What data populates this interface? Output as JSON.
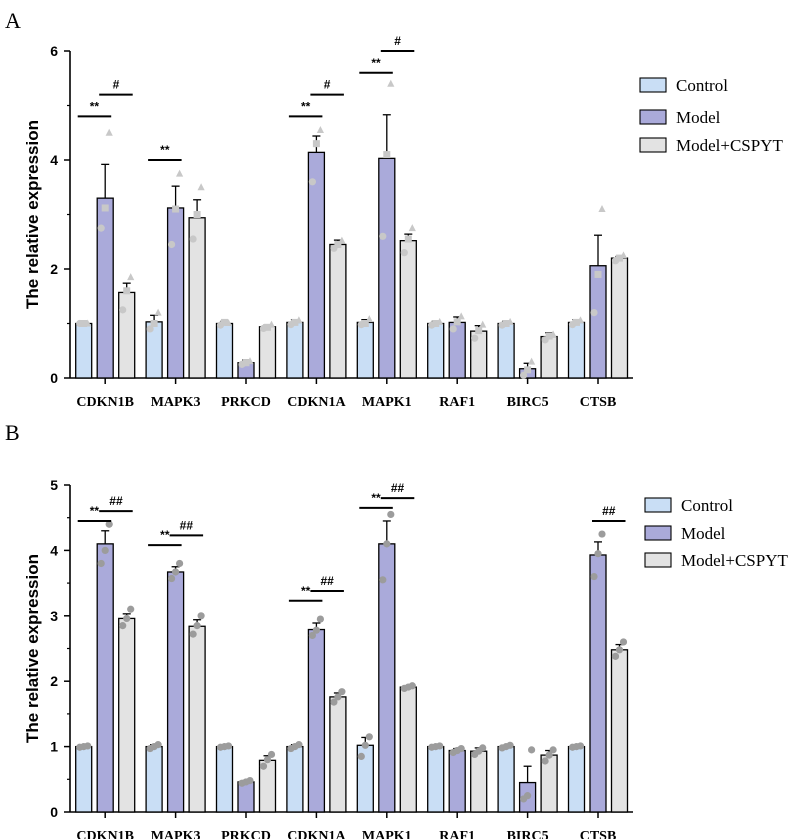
{
  "chart_data": [
    {
      "panel": "A",
      "type": "bar",
      "ylabel": "The relative expression",
      "ylim": [
        0,
        6
      ],
      "yticks": [
        "0",
        "2",
        "4",
        "6"
      ],
      "categories": [
        "CDKN1B",
        "MAPK3",
        "PRKCD",
        "CDKN1A",
        "MAPK1",
        "RAF1",
        "BIRC5",
        "CTSB"
      ],
      "series": [
        {
          "name": "Control",
          "color": "#c9def5",
          "values": [
            1.0,
            1.03,
            1.0,
            1.02,
            1.02,
            1.0,
            1.0,
            1.02
          ],
          "errors": [
            0.02,
            0.12,
            0.04,
            0.05,
            0.05,
            0.04,
            0.04,
            0.05
          ],
          "points": [
            [
              1.0,
              1.0,
              1.0
            ],
            [
              0.9,
              1.0,
              1.2
            ],
            [
              0.97,
              1.02,
              1.01
            ],
            [
              0.98,
              1.02,
              1.06
            ],
            [
              0.98,
              1.0,
              1.08
            ],
            [
              0.97,
              1.0,
              1.03
            ],
            [
              0.97,
              1.0,
              1.03
            ],
            [
              0.98,
              1.02,
              1.06
            ]
          ]
        },
        {
          "name": "Model",
          "color": "#aaaada",
          "values": [
            3.3,
            3.12,
            0.28,
            4.14,
            4.03,
            1.02,
            0.17,
            2.06
          ],
          "errors": [
            0.62,
            0.4,
            0.05,
            0.3,
            0.8,
            0.1,
            0.1,
            0.56
          ],
          "points": [
            [
              2.75,
              3.12,
              4.5
            ],
            [
              2.45,
              3.1,
              3.75
            ],
            [
              0.25,
              0.28,
              0.31
            ],
            [
              3.6,
              4.3,
              4.55
            ],
            [
              2.6,
              4.1,
              5.4
            ],
            [
              0.9,
              1.03,
              1.13
            ],
            [
              0.05,
              0.15,
              0.3
            ],
            [
              1.2,
              1.9,
              3.1
            ]
          ]
        },
        {
          "name": "Model+CSPYT",
          "color": "#e3e3e3",
          "values": [
            1.57,
            2.94,
            0.94,
            2.45,
            2.52,
            0.86,
            0.76,
            2.2
          ],
          "errors": [
            0.17,
            0.33,
            0.03,
            0.08,
            0.12,
            0.1,
            0.07,
            0.03
          ],
          "points": [
            [
              1.25,
              1.6,
              1.85
            ],
            [
              2.55,
              3.0,
              3.5
            ],
            [
              0.91,
              0.93,
              0.98
            ],
            [
              2.38,
              2.45,
              2.52
            ],
            [
              2.3,
              2.55,
              2.75
            ],
            [
              0.73,
              0.87,
              0.98
            ],
            [
              0.7,
              0.77,
              0.8
            ],
            [
              2.15,
              2.2,
              2.25
            ]
          ]
        }
      ],
      "annotations": [
        {
          "category": "CDKN1B",
          "text": "**",
          "from": 0,
          "to": 1,
          "level": 4.8
        },
        {
          "category": "CDKN1B",
          "text": "#",
          "from": 1,
          "to": 2,
          "level": 5.2
        },
        {
          "category": "MAPK3",
          "text": "**",
          "from": 0,
          "to": 1,
          "level": 4.0
        },
        {
          "category": "CDKN1A",
          "text": "**",
          "from": 0,
          "to": 1,
          "level": 4.8
        },
        {
          "category": "CDKN1A",
          "text": "#",
          "from": 1,
          "to": 2,
          "level": 5.2
        },
        {
          "category": "MAPK1",
          "text": "**",
          "from": 0,
          "to": 1,
          "level": 5.6
        },
        {
          "category": "MAPK1",
          "text": "#",
          "from": 1,
          "to": 2,
          "level": 6.0
        }
      ]
    },
    {
      "panel": "B",
      "type": "bar",
      "ylabel": "The relative expression",
      "ylim": [
        0,
        5
      ],
      "yticks": [
        "0",
        "1",
        "2",
        "3",
        "4",
        "5"
      ],
      "categories": [
        "CDKN1B",
        "MAPK3",
        "PRKCD",
        "CDKN1A",
        "MAPK1",
        "RAF1",
        "BIRC5",
        "CTSB"
      ],
      "series": [
        {
          "name": "Control",
          "color": "#c9def5",
          "values": [
            1.0,
            1.0,
            1.0,
            1.0,
            1.02,
            1.0,
            1.0,
            1.0
          ],
          "errors": [
            0.02,
            0.03,
            0.02,
            0.03,
            0.12,
            0.02,
            0.02,
            0.02
          ],
          "points": [
            [
              0.99,
              1.0,
              1.01
            ],
            [
              0.97,
              1.0,
              1.03
            ],
            [
              0.99,
              1.0,
              1.01
            ],
            [
              0.97,
              1.0,
              1.03
            ],
            [
              0.85,
              1.02,
              1.15
            ],
            [
              0.99,
              1.0,
              1.01
            ],
            [
              0.98,
              1.0,
              1.02
            ],
            [
              0.99,
              1.0,
              1.01
            ]
          ]
        },
        {
          "name": "Model",
          "color": "#aaaada",
          "values": [
            4.1,
            3.67,
            0.46,
            2.79,
            4.1,
            0.94,
            0.45,
            3.93
          ],
          "errors": [
            0.2,
            0.08,
            0.02,
            0.1,
            0.35,
            0.03,
            0.25,
            0.2
          ],
          "points": [
            [
              3.8,
              4.0,
              4.4
            ],
            [
              3.57,
              3.67,
              3.8
            ],
            [
              0.44,
              0.46,
              0.48
            ],
            [
              2.7,
              2.78,
              2.95
            ],
            [
              3.55,
              4.1,
              4.55
            ],
            [
              0.91,
              0.94,
              0.97
            ],
            [
              0.2,
              0.25,
              0.95
            ],
            [
              3.6,
              3.95,
              4.25
            ]
          ]
        },
        {
          "name": "Model+CSPYT",
          "color": "#e3e3e3",
          "values": [
            2.96,
            2.84,
            0.79,
            1.76,
            1.91,
            0.93,
            0.87,
            2.48
          ],
          "errors": [
            0.07,
            0.1,
            0.07,
            0.06,
            0.02,
            0.05,
            0.07,
            0.08
          ],
          "points": [
            [
              2.85,
              2.96,
              3.1
            ],
            [
              2.72,
              2.85,
              3.0
            ],
            [
              0.7,
              0.8,
              0.88
            ],
            [
              1.68,
              1.76,
              1.84
            ],
            [
              1.89,
              1.91,
              1.93
            ],
            [
              0.88,
              0.93,
              0.98
            ],
            [
              0.78,
              0.87,
              0.95
            ],
            [
              2.38,
              2.48,
              2.6
            ]
          ]
        }
      ],
      "annotations": [
        {
          "category": "CDKN1B",
          "text": "**",
          "from": 0,
          "to": 1,
          "level": 4.45
        },
        {
          "category": "CDKN1B",
          "text": "##",
          "from": 1,
          "to": 2,
          "level": 4.6
        },
        {
          "category": "MAPK3",
          "text": "**",
          "from": 0,
          "to": 1,
          "level": 4.08
        },
        {
          "category": "MAPK3",
          "text": "##",
          "from": 1,
          "to": 2,
          "level": 4.23
        },
        {
          "category": "CDKN1A",
          "text": "**",
          "from": 0,
          "to": 1,
          "level": 3.23
        },
        {
          "category": "CDKN1A",
          "text": "##",
          "from": 1,
          "to": 2,
          "level": 3.38
        },
        {
          "category": "MAPK1",
          "text": "**",
          "from": 0,
          "to": 1,
          "level": 4.65
        },
        {
          "category": "MAPK1",
          "text": "##",
          "from": 1,
          "to": 2,
          "level": 4.8
        },
        {
          "category": "CTSB",
          "text": "##",
          "from": 1,
          "to": 2,
          "level": 4.45
        }
      ]
    }
  ]
}
